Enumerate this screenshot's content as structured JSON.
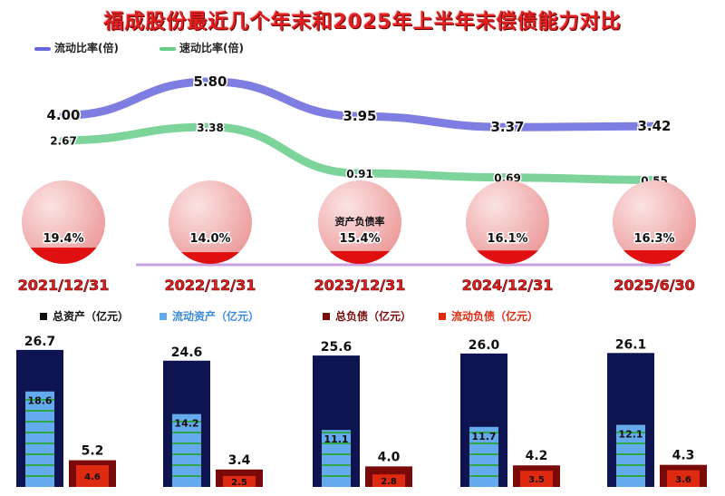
{
  "title": "福成股份最近几个年末和2025年上半年末偿债能力对比",
  "chart_data": [
    {
      "type": "line",
      "categories": [
        "2021/12/31",
        "2022/12/31",
        "2023/12/31",
        "2024/12/31",
        "2025/6/30"
      ],
      "series": [
        {
          "name": "流动比率(倍)",
          "values": [
            4.0,
            5.8,
            3.95,
            3.37,
            3.42
          ],
          "color": "#6666dd"
        },
        {
          "name": "速动比率(倍)",
          "values": [
            2.67,
            3.38,
            0.91,
            0.69,
            0.55
          ],
          "color": "#66cc88"
        }
      ]
    },
    {
      "type": "pie",
      "label": "资产负债率",
      "categories": [
        "2021/12/31",
        "2022/12/31",
        "2023/12/31",
        "2024/12/31",
        "2025/6/30"
      ],
      "values": [
        19.4,
        14.0,
        15.4,
        16.1,
        16.3
      ],
      "unit": "%"
    },
    {
      "type": "bar",
      "categories": [
        "2021/12/31",
        "2022/12/31",
        "2023/12/31",
        "2024/12/31",
        "2025/6/30"
      ],
      "series": [
        {
          "name": "总资产（亿元）",
          "values": [
            26.7,
            24.6,
            25.6,
            26.0,
            26.1
          ],
          "color": "#0d1450"
        },
        {
          "name": "流动资产（亿元）",
          "values": [
            18.6,
            14.2,
            11.1,
            11.7,
            12.1
          ],
          "color": "#66aaee"
        },
        {
          "name": "总负债（亿元）",
          "values": [
            5.2,
            3.4,
            4.0,
            4.2,
            4.3
          ],
          "color": "#7a0a0a"
        },
        {
          "name": "流动负债（亿元）",
          "values": [
            4.6,
            2.5,
            2.8,
            3.5,
            3.6
          ],
          "color": "#dd2a10"
        }
      ]
    }
  ]
}
